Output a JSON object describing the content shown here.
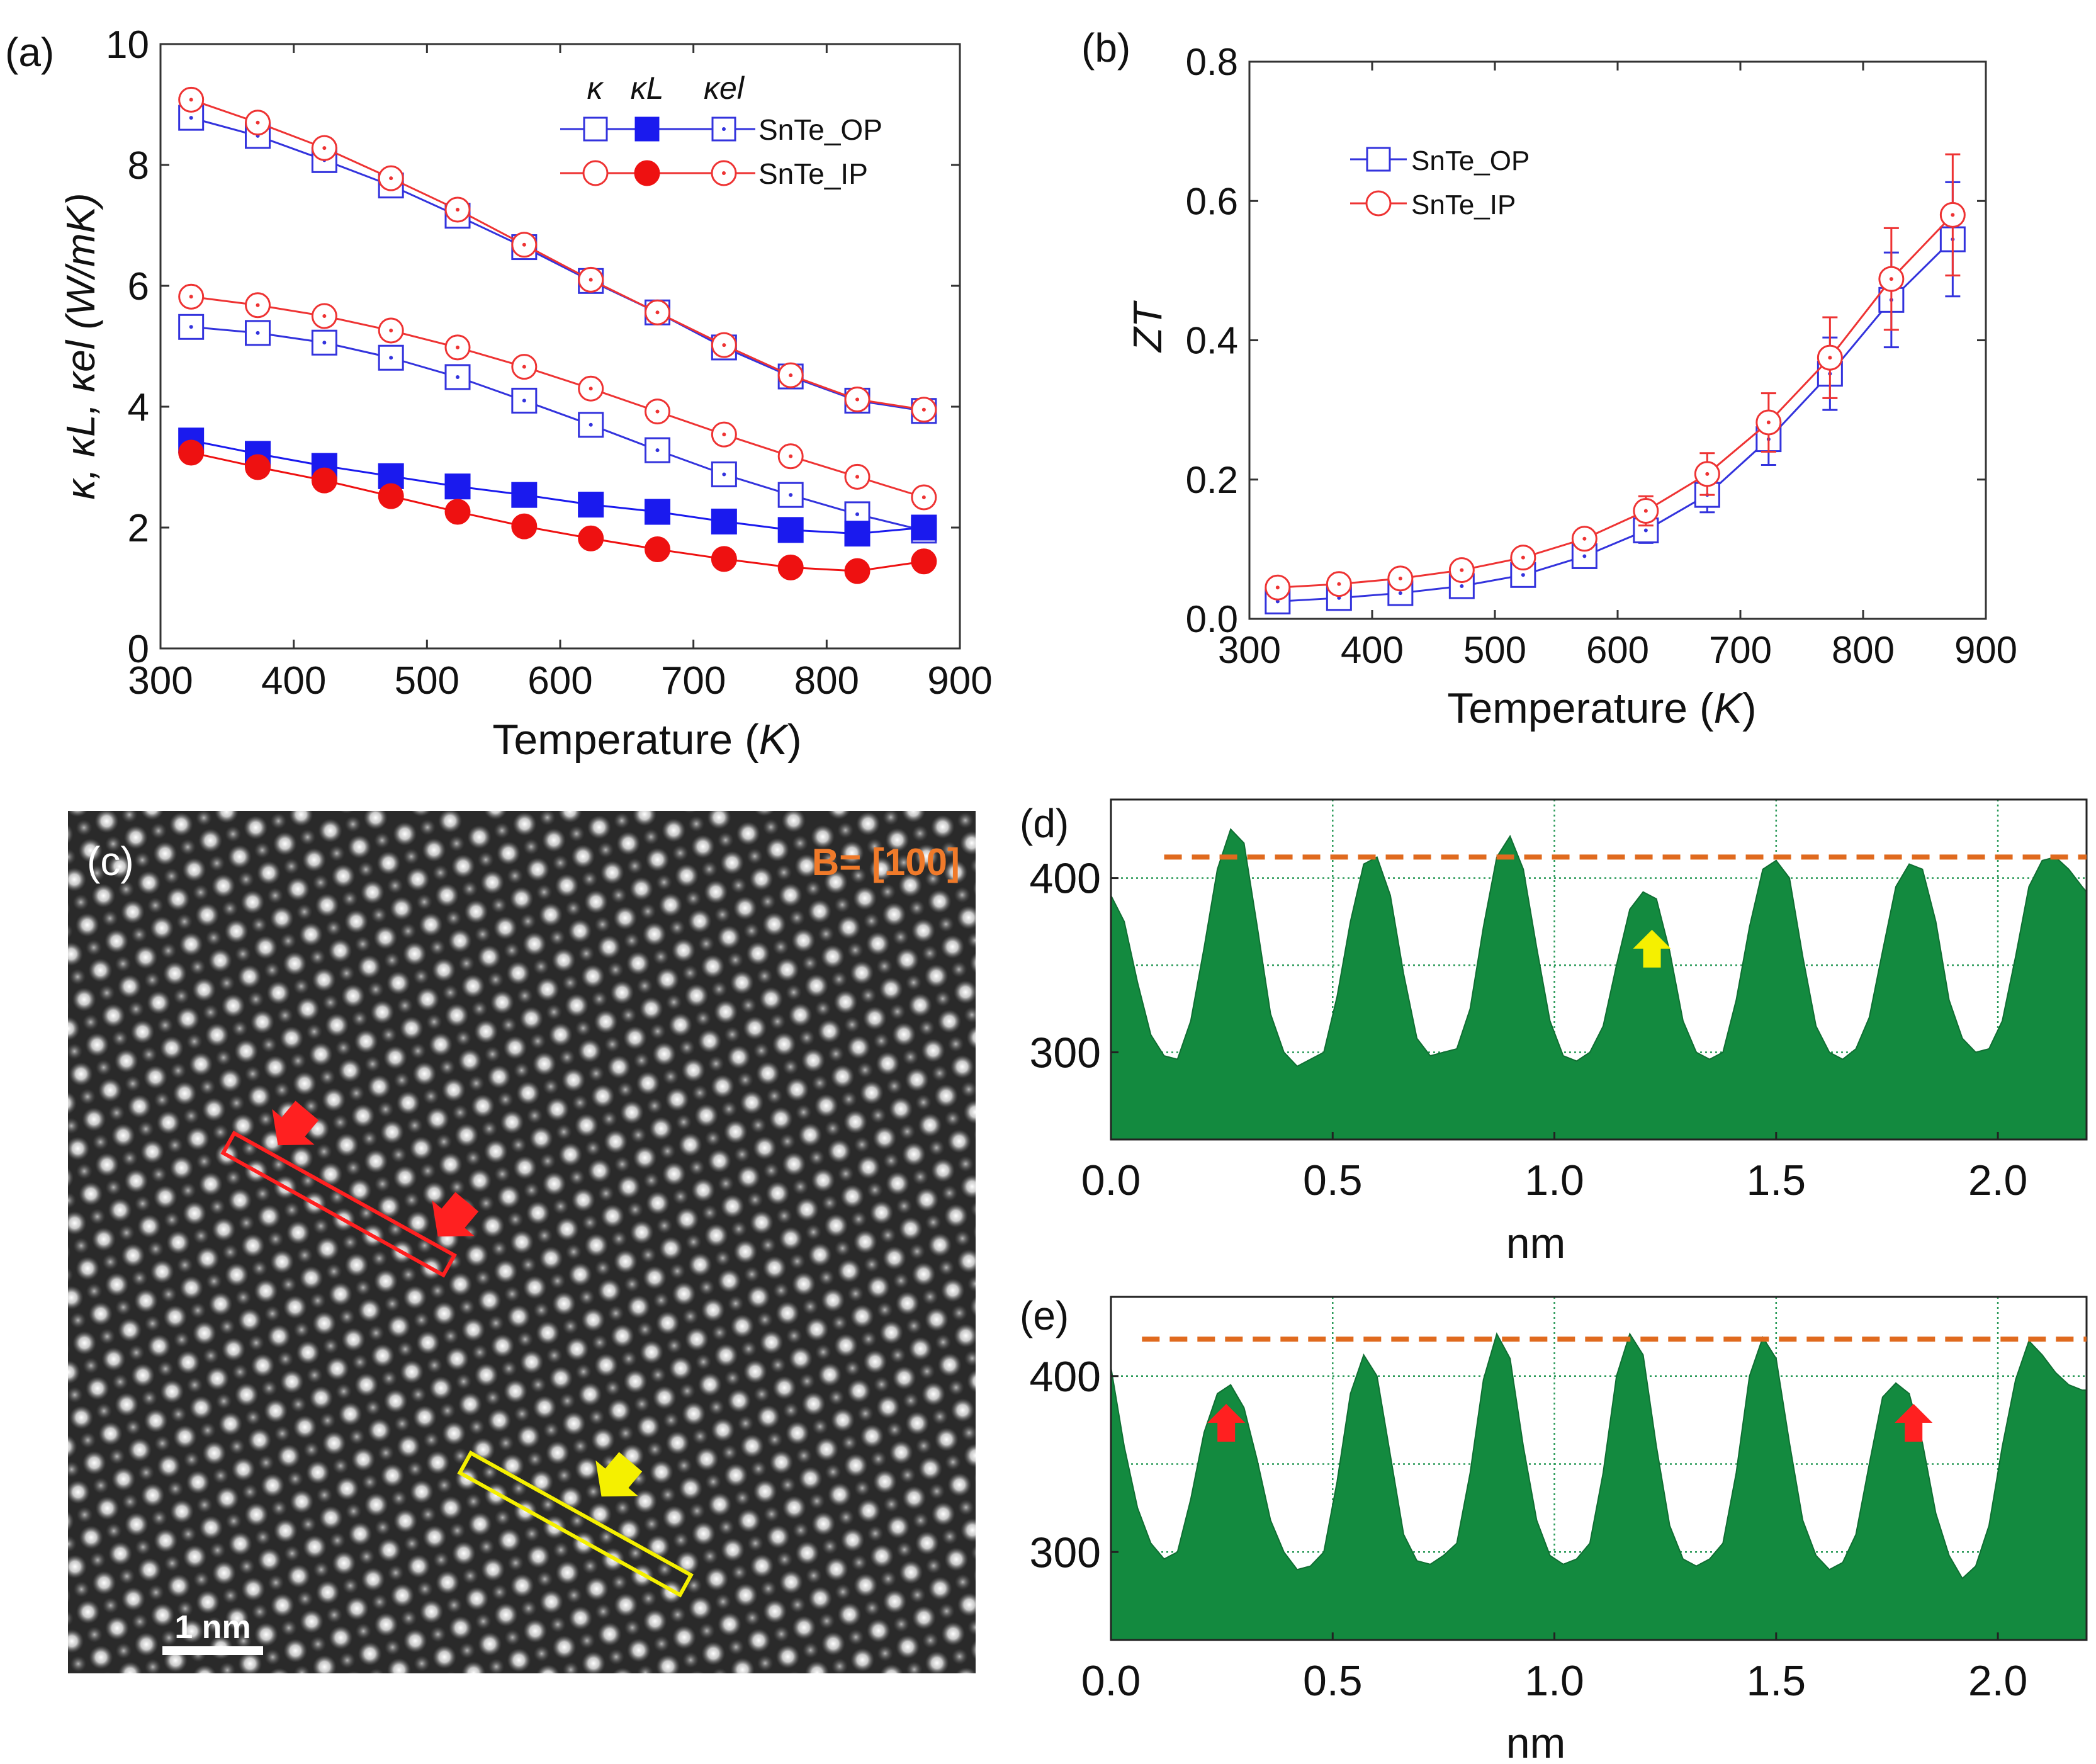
{
  "figure": {
    "panel_labels": {
      "a": "(a)",
      "b": "(b)",
      "c": "(c)",
      "d": "(d)",
      "e": "(e)"
    }
  },
  "chart_data": [
    {
      "panel": "a",
      "type": "line",
      "title": "",
      "xlabel_prefix": "Temperature (",
      "xlabel_unit": "K",
      "xlabel_suffix": ")",
      "ylabel": "κ, κL, κel (W/mK)",
      "xlim": [
        300,
        900
      ],
      "ylim": [
        0,
        10
      ],
      "x_ticks": [
        300,
        400,
        500,
        600,
        700,
        800,
        900
      ],
      "y_ticks": [
        0,
        2,
        4,
        6,
        8,
        10
      ],
      "x": [
        323,
        373,
        423,
        473,
        523,
        573,
        623,
        673,
        723,
        773,
        823,
        873
      ],
      "legend_header": [
        "κ",
        "κL",
        "κel"
      ],
      "legend_rows": [
        "SnTe_OP",
        "SnTe_IP"
      ],
      "legend_placement": "top-right",
      "series": [
        {
          "name": "SnTe_OP κ",
          "sample": "SnTe_OP",
          "quantity": "kappa",
          "color": "#3333dd",
          "marker": "square-open",
          "values": [
            8.78,
            8.48,
            8.08,
            7.66,
            7.16,
            6.64,
            6.08,
            5.56,
            4.98,
            4.5,
            4.1,
            3.93
          ]
        },
        {
          "name": "SnTe_IP κ",
          "sample": "SnTe_IP",
          "quantity": "kappa",
          "color": "#ee3333",
          "marker": "circle-open",
          "values": [
            9.08,
            8.7,
            8.28,
            7.78,
            7.26,
            6.68,
            6.1,
            5.56,
            5.02,
            4.52,
            4.12,
            3.95
          ]
        },
        {
          "name": "SnTe_OP κel",
          "sample": "SnTe_OP",
          "quantity": "kappa_el",
          "color": "#3333dd",
          "marker": "square-open",
          "values": [
            5.32,
            5.22,
            5.06,
            4.81,
            4.49,
            4.1,
            3.7,
            3.28,
            2.88,
            2.54,
            2.22,
            1.95
          ]
        },
        {
          "name": "SnTe_IP κel",
          "sample": "SnTe_IP",
          "quantity": "kappa_el",
          "color": "#ee3333",
          "marker": "circle-open",
          "values": [
            5.82,
            5.68,
            5.5,
            5.26,
            4.98,
            4.66,
            4.3,
            3.92,
            3.54,
            3.18,
            2.84,
            2.5
          ]
        },
        {
          "name": "SnTe_OP κL",
          "sample": "SnTe_OP",
          "quantity": "kappa_L",
          "color": "#1a1aee",
          "marker": "square-filled",
          "values": [
            3.44,
            3.22,
            3.02,
            2.85,
            2.68,
            2.54,
            2.38,
            2.26,
            2.1,
            1.96,
            1.9,
            2.0
          ]
        },
        {
          "name": "SnTe_IP κL",
          "sample": "SnTe_IP",
          "quantity": "kappa_L",
          "color": "#ee1111",
          "marker": "circle-filled",
          "values": [
            3.24,
            3.0,
            2.78,
            2.52,
            2.26,
            2.02,
            1.82,
            1.64,
            1.48,
            1.34,
            1.28,
            1.44
          ]
        }
      ]
    },
    {
      "panel": "b",
      "type": "line",
      "title": "",
      "xlabel_prefix": "Temperature (",
      "xlabel_unit": "K",
      "xlabel_suffix": ")",
      "ylabel": "ZT",
      "xlim": [
        300,
        900
      ],
      "ylim": [
        0.0,
        0.8
      ],
      "x_ticks": [
        300,
        400,
        500,
        600,
        700,
        800,
        900
      ],
      "y_ticks": [
        "0.0",
        "0.2",
        "0.4",
        "0.6",
        "0.8"
      ],
      "x": [
        323,
        373,
        423,
        473,
        523,
        573,
        623,
        673,
        723,
        773,
        823,
        873
      ],
      "legend_placement": "top-left",
      "series": [
        {
          "name": "SnTe_OP",
          "color": "#3333dd",
          "marker": "square-open",
          "values": [
            0.025,
            0.03,
            0.037,
            0.047,
            0.063,
            0.09,
            0.127,
            0.178,
            0.258,
            0.352,
            0.458,
            0.545
          ],
          "errors": [
            0.004,
            0.005,
            0.006,
            0.007,
            0.009,
            0.012,
            0.018,
            0.025,
            0.037,
            0.052,
            0.068,
            0.082
          ]
        },
        {
          "name": "SnTe_IP",
          "color": "#ee3333",
          "marker": "circle-open",
          "values": [
            0.045,
            0.05,
            0.058,
            0.07,
            0.088,
            0.115,
            0.155,
            0.208,
            0.282,
            0.375,
            0.488,
            0.58
          ],
          "errors": [
            0.005,
            0.006,
            0.007,
            0.008,
            0.01,
            0.014,
            0.021,
            0.03,
            0.042,
            0.058,
            0.073,
            0.087
          ]
        }
      ]
    },
    {
      "panel": "d",
      "type": "area",
      "title": "",
      "xlabel": "nm",
      "ylabel": "",
      "xlim": [
        0.0,
        2.2
      ],
      "ylim": [
        250,
        445
      ],
      "x_ticks": [
        "0.0",
        "0.5",
        "1.0",
        "1.5",
        "2.0"
      ],
      "y_ticks": [
        "300",
        "400"
      ],
      "grid": true,
      "fill_color": "#138a3f",
      "reference_level": 412,
      "reference_x_range": [
        0.12,
        2.2
      ],
      "marker_arrow": {
        "x": 1.22,
        "y": 358,
        "color": "yellow"
      },
      "x": [
        0.0,
        0.03,
        0.06,
        0.09,
        0.12,
        0.15,
        0.18,
        0.21,
        0.24,
        0.27,
        0.3,
        0.33,
        0.36,
        0.39,
        0.42,
        0.45,
        0.48,
        0.51,
        0.54,
        0.57,
        0.6,
        0.63,
        0.66,
        0.69,
        0.72,
        0.75,
        0.78,
        0.81,
        0.84,
        0.87,
        0.9,
        0.93,
        0.96,
        0.99,
        1.02,
        1.05,
        1.08,
        1.11,
        1.14,
        1.17,
        1.2,
        1.23,
        1.26,
        1.29,
        1.32,
        1.35,
        1.38,
        1.41,
        1.44,
        1.47,
        1.5,
        1.53,
        1.56,
        1.59,
        1.62,
        1.65,
        1.68,
        1.71,
        1.74,
        1.77,
        1.8,
        1.83,
        1.86,
        1.89,
        1.92,
        1.95,
        1.98,
        2.01,
        2.04,
        2.07,
        2.1,
        2.13,
        2.16,
        2.19,
        2.2
      ],
      "values": [
        390,
        375,
        340,
        310,
        298,
        296,
        318,
        360,
        405,
        428,
        420,
        372,
        322,
        300,
        292,
        296,
        300,
        332,
        375,
        408,
        412,
        390,
        345,
        308,
        298,
        300,
        302,
        325,
        372,
        412,
        424,
        405,
        360,
        318,
        298,
        295,
        300,
        315,
        350,
        382,
        392,
        388,
        358,
        318,
        300,
        296,
        300,
        330,
        372,
        405,
        410,
        400,
        355,
        315,
        300,
        296,
        302,
        320,
        358,
        395,
        408,
        405,
        375,
        330,
        308,
        300,
        302,
        318,
        355,
        395,
        410,
        412,
        405,
        395,
        392
      ]
    },
    {
      "panel": "e",
      "type": "area",
      "title": "",
      "xlabel": "nm",
      "ylabel": "",
      "xlim": [
        0.0,
        2.2
      ],
      "ylim": [
        250,
        445
      ],
      "x_ticks": [
        "0.0",
        "0.5",
        "1.0",
        "1.5",
        "2.0"
      ],
      "y_ticks": [
        "300",
        "400"
      ],
      "grid": true,
      "fill_color": "#138a3f",
      "reference_level": 421,
      "reference_x_range": [
        0.07,
        2.2
      ],
      "marker_arrows": [
        {
          "x": 0.26,
          "y": 372,
          "color": "red"
        },
        {
          "x": 1.81,
          "y": 372,
          "color": "red"
        }
      ],
      "x": [
        0.0,
        0.03,
        0.06,
        0.09,
        0.12,
        0.15,
        0.18,
        0.21,
        0.24,
        0.27,
        0.3,
        0.33,
        0.36,
        0.39,
        0.42,
        0.45,
        0.48,
        0.51,
        0.54,
        0.57,
        0.6,
        0.63,
        0.66,
        0.69,
        0.72,
        0.75,
        0.78,
        0.81,
        0.84,
        0.87,
        0.9,
        0.93,
        0.96,
        0.99,
        1.02,
        1.05,
        1.08,
        1.11,
        1.14,
        1.17,
        1.2,
        1.23,
        1.26,
        1.29,
        1.32,
        1.35,
        1.38,
        1.41,
        1.44,
        1.47,
        1.5,
        1.53,
        1.56,
        1.59,
        1.62,
        1.65,
        1.68,
        1.71,
        1.74,
        1.77,
        1.8,
        1.83,
        1.86,
        1.89,
        1.92,
        1.95,
        1.98,
        2.01,
        2.04,
        2.07,
        2.1,
        2.13,
        2.16,
        2.19,
        2.2
      ],
      "values": [
        405,
        360,
        325,
        305,
        296,
        300,
        330,
        368,
        390,
        395,
        382,
        352,
        318,
        300,
        290,
        292,
        300,
        340,
        390,
        412,
        400,
        355,
        310,
        295,
        293,
        298,
        305,
        345,
        398,
        424,
        410,
        360,
        318,
        298,
        293,
        296,
        305,
        345,
        400,
        424,
        412,
        360,
        315,
        296,
        292,
        296,
        305,
        345,
        400,
        422,
        410,
        362,
        318,
        298,
        290,
        294,
        310,
        350,
        388,
        396,
        390,
        362,
        322,
        298,
        285,
        292,
        315,
        360,
        398,
        420,
        412,
        402,
        395,
        392,
        392
      ]
    }
  ],
  "panel_c": {
    "beam_label": "B= [100]",
    "scale_bar_label": "1 nm",
    "highlight_box_colors": [
      "#ff2020",
      "#f5f000"
    ]
  }
}
